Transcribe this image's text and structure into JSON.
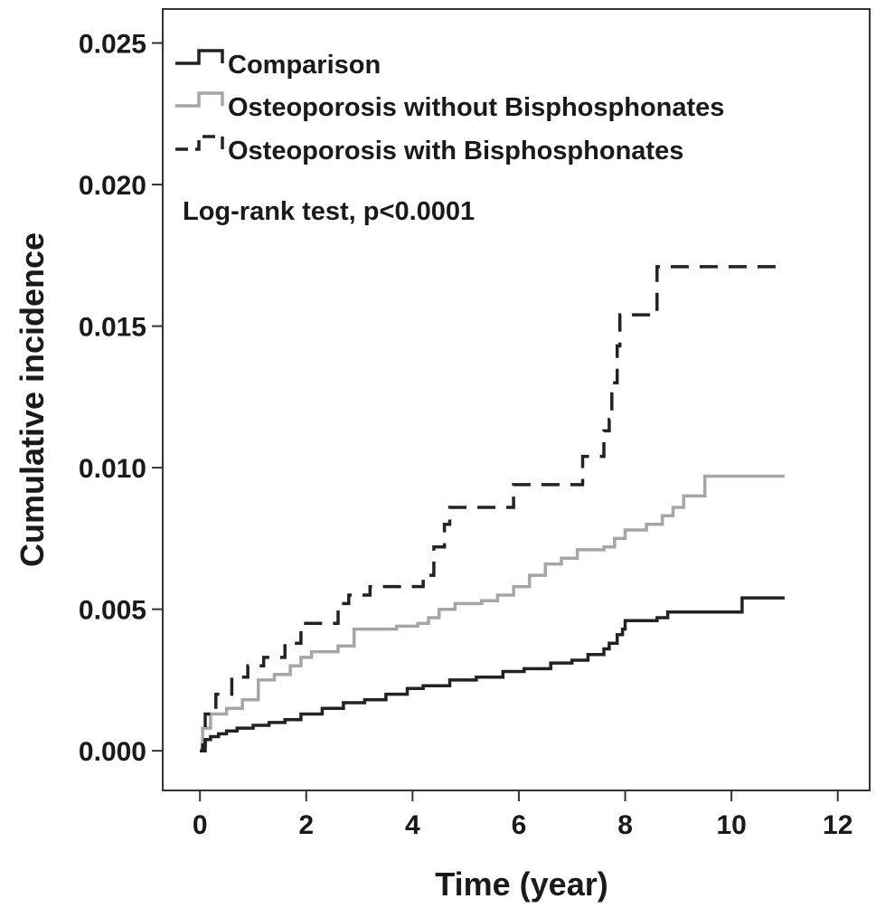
{
  "chart_data": {
    "type": "line",
    "step": true,
    "xlabel": "Time (year)",
    "ylabel": "Cumulative incidence",
    "xlim": [
      -0.7,
      12.6
    ],
    "ylim": [
      -0.0014,
      0.0262
    ],
    "xticks": [
      0,
      2,
      4,
      6,
      8,
      10,
      12
    ],
    "xtick_labels": [
      "0",
      "2",
      "4",
      "6",
      "8",
      "10",
      "12"
    ],
    "yticks": [
      0.0,
      0.005,
      0.01,
      0.015,
      0.02,
      0.025
    ],
    "ytick_labels": [
      "0.000",
      "0.005",
      "0.010",
      "0.015",
      "0.020",
      "0.025"
    ],
    "annotation": "Log-rank test, p<0.0001",
    "legend_position": "top-left",
    "grid": false,
    "series": [
      {
        "name": "Comparison",
        "color": "#222222",
        "dash": "solid",
        "points": [
          [
            0,
            0
          ],
          [
            0.05,
            0.0002
          ],
          [
            0.1,
            0.0004
          ],
          [
            0.2,
            0.0005
          ],
          [
            0.35,
            0.0006
          ],
          [
            0.5,
            0.0007
          ],
          [
            0.7,
            0.0008
          ],
          [
            1.0,
            0.0009
          ],
          [
            1.3,
            0.001
          ],
          [
            1.6,
            0.0011
          ],
          [
            1.9,
            0.0013
          ],
          [
            2.3,
            0.0015
          ],
          [
            2.7,
            0.0017
          ],
          [
            3.1,
            0.0018
          ],
          [
            3.5,
            0.002
          ],
          [
            3.9,
            0.0022
          ],
          [
            4.2,
            0.0023
          ],
          [
            4.7,
            0.0025
          ],
          [
            5.2,
            0.0026
          ],
          [
            5.7,
            0.0028
          ],
          [
            6.1,
            0.0029
          ],
          [
            6.6,
            0.0031
          ],
          [
            7.0,
            0.0032
          ],
          [
            7.3,
            0.0034
          ],
          [
            7.6,
            0.0036
          ],
          [
            7.7,
            0.0038
          ],
          [
            7.85,
            0.0041
          ],
          [
            7.95,
            0.0043
          ],
          [
            8.0,
            0.0046
          ],
          [
            8.6,
            0.0047
          ],
          [
            8.8,
            0.0049
          ],
          [
            10.2,
            0.0054
          ],
          [
            11.0,
            0.0054
          ]
        ]
      },
      {
        "name": "Osteoporosis without Bisphosphonates",
        "color": "#a6a6a6",
        "dash": "solid",
        "points": [
          [
            0,
            0
          ],
          [
            0.05,
            0.0008
          ],
          [
            0.2,
            0.0013
          ],
          [
            0.5,
            0.0015
          ],
          [
            0.8,
            0.0018
          ],
          [
            1.1,
            0.0025
          ],
          [
            1.4,
            0.0027
          ],
          [
            1.7,
            0.003
          ],
          [
            1.9,
            0.0033
          ],
          [
            2.1,
            0.0035
          ],
          [
            2.6,
            0.0037
          ],
          [
            2.9,
            0.0043
          ],
          [
            3.7,
            0.0044
          ],
          [
            4.1,
            0.0045
          ],
          [
            4.3,
            0.0047
          ],
          [
            4.5,
            0.005
          ],
          [
            4.8,
            0.0052
          ],
          [
            5.3,
            0.0053
          ],
          [
            5.6,
            0.0055
          ],
          [
            5.9,
            0.0058
          ],
          [
            6.2,
            0.0062
          ],
          [
            6.5,
            0.0066
          ],
          [
            6.8,
            0.0068
          ],
          [
            7.1,
            0.0071
          ],
          [
            7.6,
            0.0072
          ],
          [
            7.8,
            0.0075
          ],
          [
            8.0,
            0.0078
          ],
          [
            8.4,
            0.008
          ],
          [
            8.7,
            0.0083
          ],
          [
            8.9,
            0.0086
          ],
          [
            9.1,
            0.009
          ],
          [
            9.5,
            0.0097
          ],
          [
            11.0,
            0.0097
          ]
        ]
      },
      {
        "name": "Osteoporosis with Bisphosphonates",
        "color": "#222222",
        "dash": "dashed",
        "points": [
          [
            0,
            0
          ],
          [
            0.1,
            0.0013
          ],
          [
            0.3,
            0.002
          ],
          [
            0.6,
            0.0026
          ],
          [
            0.9,
            0.003
          ],
          [
            1.2,
            0.0033
          ],
          [
            1.6,
            0.0038
          ],
          [
            1.9,
            0.0045
          ],
          [
            2.6,
            0.0052
          ],
          [
            2.8,
            0.0055
          ],
          [
            3.2,
            0.0058
          ],
          [
            4.2,
            0.0062
          ],
          [
            4.4,
            0.0072
          ],
          [
            4.6,
            0.008
          ],
          [
            4.7,
            0.0086
          ],
          [
            5.9,
            0.0094
          ],
          [
            7.2,
            0.0104
          ],
          [
            7.6,
            0.0113
          ],
          [
            7.7,
            0.0117
          ],
          [
            7.75,
            0.013
          ],
          [
            7.85,
            0.0143
          ],
          [
            7.9,
            0.0154
          ],
          [
            8.6,
            0.0171
          ],
          [
            11.0,
            0.0171
          ]
        ]
      }
    ]
  }
}
